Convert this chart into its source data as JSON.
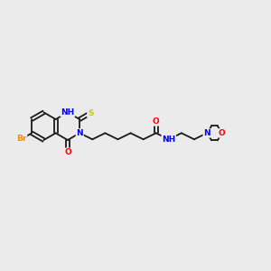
{
  "background_color": "#ebebeb",
  "bond_color": "#1a1a1a",
  "atom_colors": {
    "N": "#0000ff",
    "O": "#ff0000",
    "S": "#cccc00",
    "Br": "#ff8c00",
    "NH": "#0000ff",
    "C": "#1a1a1a"
  },
  "figsize": [
    3.0,
    3.0
  ],
  "dpi": 100
}
